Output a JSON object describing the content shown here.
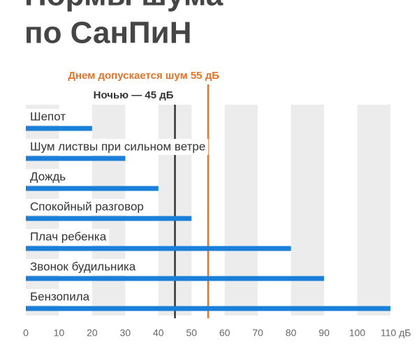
{
  "chart_data": {
    "type": "bar",
    "orientation": "horizontal",
    "title": [
      "Нормы шума",
      "по СанПиН"
    ],
    "categories": [
      "Шепот",
      "Шум листвы при сильном ветре",
      "Дождь",
      "Спокойный разговор",
      "Плач ребенка",
      "Звонок будильника",
      "Бензопила"
    ],
    "values": [
      20,
      30,
      40,
      50,
      80,
      90,
      110
    ],
    "color": "#1a7fd8",
    "xlim": [
      0,
      110
    ],
    "xticks": [
      0,
      10,
      20,
      30,
      40,
      50,
      60,
      70,
      80,
      90,
      100,
      {
        "value": 110,
        "label": "110 дБ"
      }
    ],
    "grid": true,
    "reference_lines": [
      {
        "label": "Ночью — 45 дБ",
        "value": 45,
        "color": "#333333"
      },
      {
        "label": "Днем допускается шум 55 дБ",
        "value": 55,
        "color": "#e8742a"
      }
    ]
  }
}
